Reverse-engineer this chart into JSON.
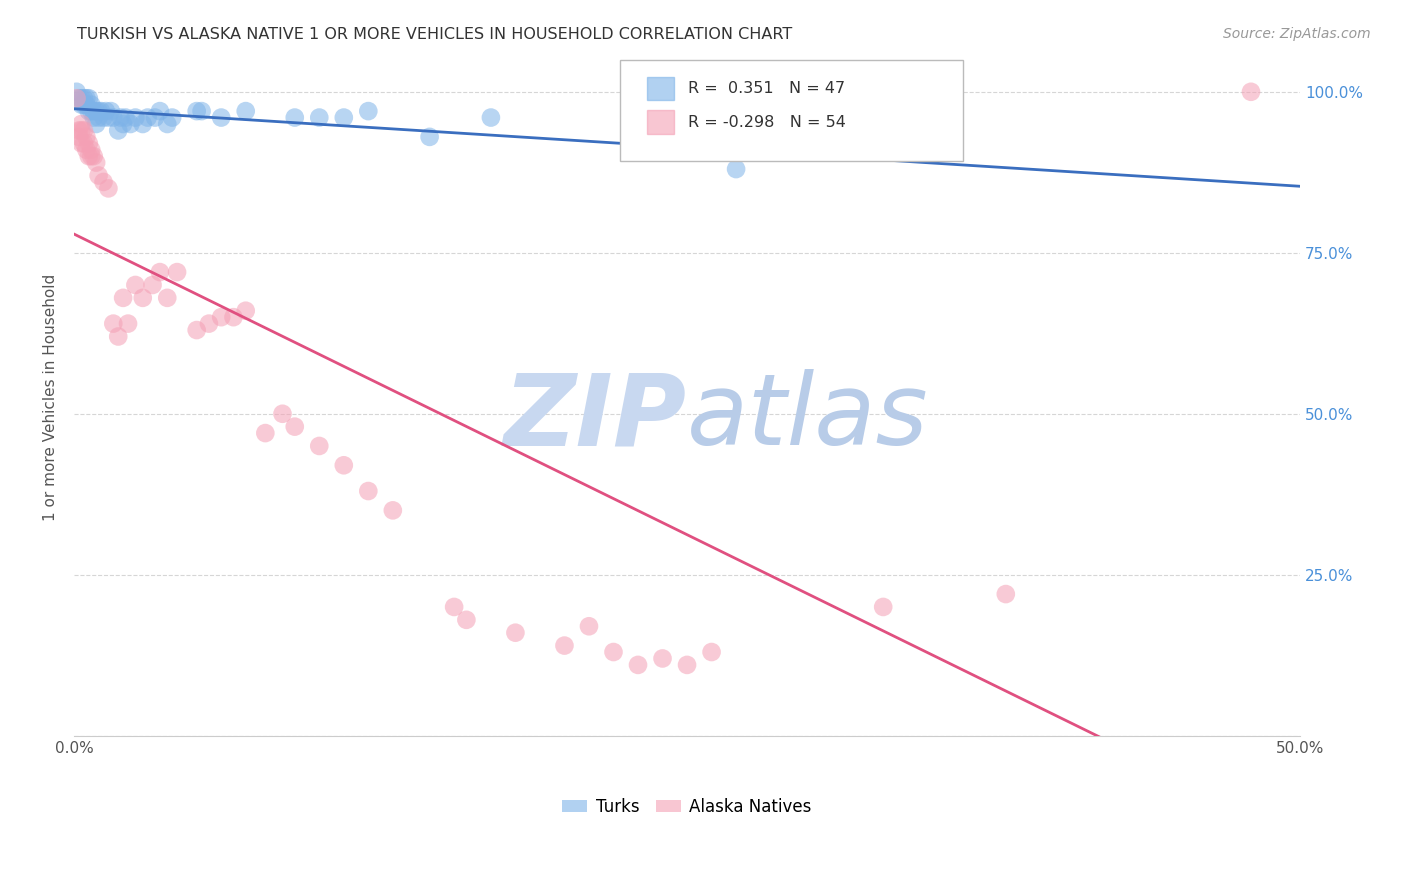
{
  "title": "TURKISH VS ALASKA NATIVE 1 OR MORE VEHICLES IN HOUSEHOLD CORRELATION CHART",
  "source": "Source: ZipAtlas.com",
  "ylabel": "1 or more Vehicles in Household",
  "xlim": [
    0.0,
    0.5
  ],
  "ylim": [
    0.0,
    1.05
  ],
  "yticks": [
    0.0,
    0.25,
    0.5,
    0.75,
    1.0
  ],
  "ytick_labels": [
    "",
    "25.0%",
    "50.0%",
    "75.0%",
    "100.0%"
  ],
  "xticks": [
    0.0,
    0.1,
    0.2,
    0.3,
    0.4,
    0.5
  ],
  "xtick_labels": [
    "0.0%",
    "",
    "",
    "",
    "",
    "50.0%"
  ],
  "turks_R": 0.351,
  "turks_N": 47,
  "alaska_R": -0.298,
  "alaska_N": 54,
  "turks_color": "#7EB3E8",
  "alaska_color": "#F4A0B5",
  "turks_line_color": "#3A6EBF",
  "alaska_line_color": "#E05080",
  "watermark_color": "#C8D8F0",
  "background_color": "#FFFFFF",
  "grid_color": "#CCCCCC",
  "right_axis_color": "#4A90D9",
  "turks_points": [
    [
      0.001,
      1.0
    ],
    [
      0.002,
      0.99
    ],
    [
      0.003,
      0.99
    ],
    [
      0.003,
      0.98
    ],
    [
      0.004,
      0.99
    ],
    [
      0.004,
      0.98
    ],
    [
      0.005,
      0.99
    ],
    [
      0.005,
      0.98
    ],
    [
      0.006,
      0.99
    ],
    [
      0.006,
      0.97
    ],
    [
      0.007,
      0.98
    ],
    [
      0.007,
      0.97
    ],
    [
      0.008,
      0.97
    ],
    [
      0.008,
      0.96
    ],
    [
      0.009,
      0.97
    ],
    [
      0.009,
      0.95
    ],
    [
      0.01,
      0.97
    ],
    [
      0.01,
      0.96
    ],
    [
      0.011,
      0.97
    ],
    [
      0.012,
      0.96
    ],
    [
      0.013,
      0.97
    ],
    [
      0.014,
      0.96
    ],
    [
      0.015,
      0.97
    ],
    [
      0.016,
      0.96
    ],
    [
      0.018,
      0.94
    ],
    [
      0.019,
      0.96
    ],
    [
      0.02,
      0.95
    ],
    [
      0.021,
      0.96
    ],
    [
      0.023,
      0.95
    ],
    [
      0.025,
      0.96
    ],
    [
      0.028,
      0.95
    ],
    [
      0.03,
      0.96
    ],
    [
      0.033,
      0.96
    ],
    [
      0.035,
      0.97
    ],
    [
      0.038,
      0.95
    ],
    [
      0.04,
      0.96
    ],
    [
      0.05,
      0.97
    ],
    [
      0.052,
      0.97
    ],
    [
      0.06,
      0.96
    ],
    [
      0.07,
      0.97
    ],
    [
      0.09,
      0.96
    ],
    [
      0.1,
      0.96
    ],
    [
      0.11,
      0.96
    ],
    [
      0.12,
      0.97
    ],
    [
      0.145,
      0.93
    ],
    [
      0.17,
      0.96
    ],
    [
      0.27,
      0.88
    ]
  ],
  "alaska_points": [
    [
      0.001,
      0.99
    ],
    [
      0.002,
      0.94
    ],
    [
      0.002,
      0.93
    ],
    [
      0.003,
      0.95
    ],
    [
      0.003,
      0.94
    ],
    [
      0.003,
      0.92
    ],
    [
      0.004,
      0.94
    ],
    [
      0.004,
      0.92
    ],
    [
      0.005,
      0.93
    ],
    [
      0.005,
      0.91
    ],
    [
      0.006,
      0.92
    ],
    [
      0.006,
      0.9
    ],
    [
      0.007,
      0.91
    ],
    [
      0.007,
      0.9
    ],
    [
      0.008,
      0.9
    ],
    [
      0.009,
      0.89
    ],
    [
      0.01,
      0.87
    ],
    [
      0.012,
      0.86
    ],
    [
      0.014,
      0.85
    ],
    [
      0.016,
      0.64
    ],
    [
      0.018,
      0.62
    ],
    [
      0.02,
      0.68
    ],
    [
      0.022,
      0.64
    ],
    [
      0.025,
      0.7
    ],
    [
      0.028,
      0.68
    ],
    [
      0.032,
      0.7
    ],
    [
      0.035,
      0.72
    ],
    [
      0.038,
      0.68
    ],
    [
      0.042,
      0.72
    ],
    [
      0.05,
      0.63
    ],
    [
      0.055,
      0.64
    ],
    [
      0.06,
      0.65
    ],
    [
      0.065,
      0.65
    ],
    [
      0.07,
      0.66
    ],
    [
      0.078,
      0.47
    ],
    [
      0.085,
      0.5
    ],
    [
      0.09,
      0.48
    ],
    [
      0.1,
      0.45
    ],
    [
      0.11,
      0.42
    ],
    [
      0.12,
      0.38
    ],
    [
      0.13,
      0.35
    ],
    [
      0.155,
      0.2
    ],
    [
      0.16,
      0.18
    ],
    [
      0.18,
      0.16
    ],
    [
      0.2,
      0.14
    ],
    [
      0.21,
      0.17
    ],
    [
      0.22,
      0.13
    ],
    [
      0.23,
      0.11
    ],
    [
      0.24,
      0.12
    ],
    [
      0.25,
      0.11
    ],
    [
      0.26,
      0.13
    ],
    [
      0.33,
      0.2
    ],
    [
      0.38,
      0.22
    ],
    [
      0.48,
      1.0
    ]
  ]
}
